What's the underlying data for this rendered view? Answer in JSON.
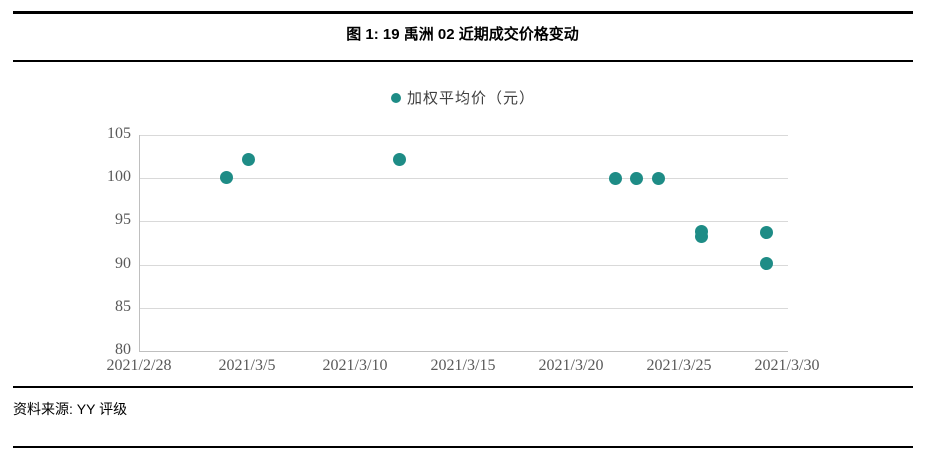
{
  "figure": {
    "title": "图 1: 19 禹洲 02 近期成交价格变动",
    "source": "资料来源: YY 评级"
  },
  "chart_data": {
    "type": "scatter",
    "title": "19 禹洲 02 近期成交价格变动",
    "legend": "加权平均价（元）",
    "legend_position": "top-center",
    "marker_color": "#1e8c86",
    "grid": true,
    "xlabel": "",
    "ylabel": "",
    "ylim": [
      80,
      105
    ],
    "y_ticks": [
      105,
      100,
      95,
      90,
      85,
      80
    ],
    "x_ticks": [
      "2021/2/28",
      "2021/3/5",
      "2021/3/10",
      "2021/3/15",
      "2021/3/20",
      "2021/3/25",
      "2021/3/30"
    ],
    "x_range": [
      "2021/2/28",
      "2021/3/30"
    ],
    "series": [
      {
        "name": "加权平均价（元）",
        "points": [
          {
            "date": "2021/3/4",
            "value": 100.1
          },
          {
            "date": "2021/3/5",
            "value": 102.2
          },
          {
            "date": "2021/3/12",
            "value": 102.2
          },
          {
            "date": "2021/3/22",
            "value": 100.0
          },
          {
            "date": "2021/3/23",
            "value": 100.0
          },
          {
            "date": "2021/3/24",
            "value": 100.0
          },
          {
            "date": "2021/3/26",
            "value": 93.8
          },
          {
            "date": "2021/3/26",
            "value": 93.3
          },
          {
            "date": "2021/3/29",
            "value": 93.7
          },
          {
            "date": "2021/3/29",
            "value": 90.1
          }
        ]
      }
    ]
  }
}
